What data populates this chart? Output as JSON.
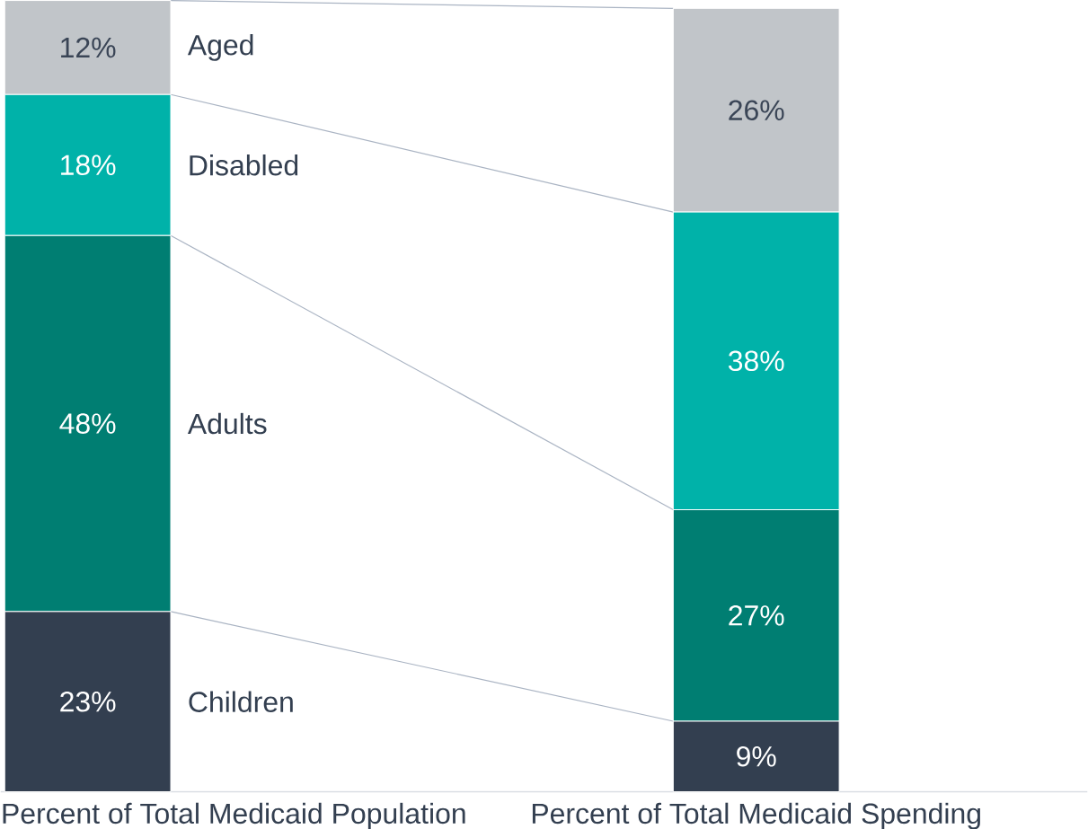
{
  "chart_data": {
    "type": "bar",
    "stacked": true,
    "categories": [
      "Percent of Total Medicaid Population",
      "Percent of Total Medicaid Spending"
    ],
    "series": [
      {
        "name": "Children",
        "color": "#333f50",
        "values": [
          23,
          9
        ],
        "value_labels": [
          "23%",
          "9%"
        ]
      },
      {
        "name": "Adults",
        "color": "#007e72",
        "values": [
          48,
          27
        ],
        "value_labels": [
          "48%",
          "27%"
        ]
      },
      {
        "name": "Disabled",
        "color": "#00b2a9",
        "values": [
          18,
          38
        ],
        "value_labels": [
          "18%",
          "38%"
        ]
      },
      {
        "name": "Aged",
        "color": "#c1c5c9",
        "values": [
          12,
          26
        ],
        "value_labels": [
          "12%",
          "26%"
        ]
      }
    ]
  }
}
